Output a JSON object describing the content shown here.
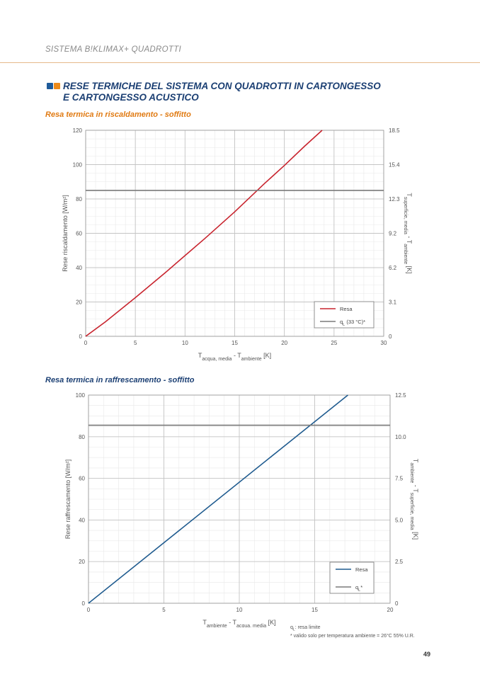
{
  "header": {
    "section": "SISTEMA B!KLIMAX+ QUADROTTI"
  },
  "title": {
    "line1": "RESE TERMICHE DEL SISTEMA CON QUADROTTI IN CARTONGESSO",
    "line2": "E CARTONGESSO ACUSTICO"
  },
  "colors": {
    "accent_blue": "#1b3f73",
    "accent_orange": "#ec8a1a",
    "heat_line": "#c8242e",
    "cool_line": "#1f5b8f",
    "limit_line": "#7a7a7a"
  },
  "chart_data": [
    {
      "type": "line",
      "title": "Resa termica in riscaldamento - soffitto",
      "xlabel": {
        "base": "T",
        "sub1": "acqua, media",
        "mid": " - T",
        "sub2": "ambiente",
        "end": " [K]"
      },
      "ylabel": "Rese riscaldamento [W/m²]",
      "y2label": {
        "base": "T",
        "sub1": "superficie, media",
        "mid": " - T",
        "sub2": "ambiente",
        "end": " [K]"
      },
      "xlim": [
        0,
        30
      ],
      "ylim": [
        0,
        120
      ],
      "xticks": [
        0,
        5,
        10,
        15,
        20,
        25,
        30
      ],
      "yticks": [
        0,
        20,
        40,
        60,
        80,
        100,
        120
      ],
      "y2ticks": [
        "0",
        "3.1",
        "6.2",
        "9.2",
        "12.3",
        "15.4",
        "18.5"
      ],
      "grid": true,
      "legend": {
        "position": "bottom-right",
        "entries": [
          "Resa",
          "qL (33 °C)*"
        ]
      },
      "series": [
        {
          "name": "Resa",
          "x": [
            0,
            2,
            5,
            8,
            10,
            12,
            15,
            18,
            20,
            22,
            23.8
          ],
          "y": [
            0,
            8.5,
            22.5,
            37,
            47,
            57,
            72.5,
            89,
            99.5,
            110.5,
            120
          ]
        },
        {
          "name": "qL (33 °C)*",
          "x": [
            0,
            30
          ],
          "y": [
            85,
            85
          ]
        }
      ]
    },
    {
      "type": "line",
      "title": "Resa termica in raffrescamento - soffitto",
      "xlabel": {
        "base": "T",
        "sub1": "ambiente",
        "mid": " - T",
        "sub2": "acqua, media",
        "end": " [K]"
      },
      "ylabel": "Rese raffrescamento [W/m²]",
      "y2label": {
        "base": "T",
        "sub1": "ambiente",
        "mid": " - T",
        "sub2": "superficie, media",
        "end": " [K]"
      },
      "xlim": [
        0,
        20
      ],
      "ylim": [
        0,
        100
      ],
      "xticks": [
        0,
        5,
        10,
        15,
        20
      ],
      "yticks": [
        0,
        20,
        40,
        60,
        80,
        100
      ],
      "y2ticks": [
        "0",
        "2.5",
        "5.0",
        "7.5",
        "10.0",
        "12.5"
      ],
      "grid": true,
      "legend": {
        "position": "bottom-right",
        "entries": [
          "Resa",
          "qL*"
        ]
      },
      "series": [
        {
          "name": "Resa",
          "x": [
            0,
            17.2
          ],
          "y": [
            0,
            100
          ]
        },
        {
          "name": "qL*",
          "x": [
            0,
            20
          ],
          "y": [
            85.5,
            85.5
          ]
        }
      ]
    }
  ],
  "notes": {
    "line1": "qL: resa limite",
    "line2": "* valido solo per temperatura ambiente = 26°C 55% U.R."
  },
  "page_number": "49"
}
